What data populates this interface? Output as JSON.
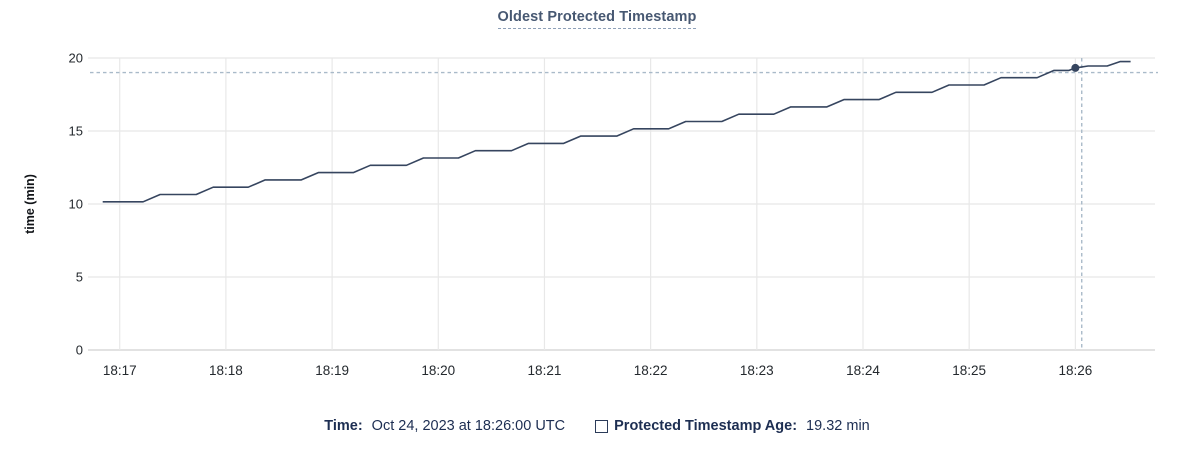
{
  "chart_data": {
    "type": "line",
    "title": "Oldest Protected Timestamp",
    "xlabel": "",
    "ylabel": "time (min)",
    "x_ticks": [
      "18:17",
      "18:18",
      "18:19",
      "18:20",
      "18:21",
      "18:22",
      "18:23",
      "18:24",
      "18:25",
      "18:26"
    ],
    "y_ticks": [
      "0",
      "5",
      "10",
      "15",
      "20"
    ],
    "y_tick_values": [
      0,
      5,
      10,
      15,
      20
    ],
    "ylim": [
      0,
      20
    ],
    "xlim_minutes": [
      -0.28,
      9.75
    ],
    "grid": true,
    "legend_position": "bottom",
    "series": [
      {
        "name": "Protected Timestamp Age",
        "points": [
          [
            -0.16,
            10.15
          ],
          [
            0.22,
            10.15
          ],
          [
            0.38,
            10.65
          ],
          [
            0.72,
            10.65
          ],
          [
            0.88,
            11.15
          ],
          [
            1.21,
            11.15
          ],
          [
            1.37,
            11.65
          ],
          [
            1.71,
            11.65
          ],
          [
            1.87,
            12.15
          ],
          [
            2.2,
            12.15
          ],
          [
            2.36,
            12.65
          ],
          [
            2.7,
            12.65
          ],
          [
            2.86,
            13.15
          ],
          [
            3.19,
            13.15
          ],
          [
            3.35,
            13.65
          ],
          [
            3.69,
            13.65
          ],
          [
            3.85,
            14.15
          ],
          [
            4.18,
            14.15
          ],
          [
            4.34,
            14.65
          ],
          [
            4.68,
            14.65
          ],
          [
            4.84,
            15.15
          ],
          [
            5.17,
            15.15
          ],
          [
            5.33,
            15.65
          ],
          [
            5.67,
            15.65
          ],
          [
            5.83,
            16.15
          ],
          [
            6.16,
            16.15
          ],
          [
            6.32,
            16.65
          ],
          [
            6.66,
            16.65
          ],
          [
            6.82,
            17.15
          ],
          [
            7.15,
            17.15
          ],
          [
            7.31,
            17.65
          ],
          [
            7.65,
            17.65
          ],
          [
            7.81,
            18.15
          ],
          [
            8.14,
            18.15
          ],
          [
            8.3,
            18.65
          ],
          [
            8.64,
            18.65
          ],
          [
            8.8,
            19.15
          ],
          [
            8.94,
            19.15
          ],
          [
            9.0,
            19.32
          ],
          [
            9.12,
            19.45
          ],
          [
            9.3,
            19.45
          ],
          [
            9.42,
            19.75
          ],
          [
            9.52,
            19.75
          ]
        ]
      }
    ],
    "crosshair": {
      "t_minutes": 9.06,
      "hline_value": 19.0,
      "point": [
        9.0,
        19.32
      ]
    },
    "colors": {
      "series_line": "#36455f",
      "data_point": "#36455f",
      "grid_line": "#e8e8e8",
      "axis_line": "#d9d9d9",
      "tick_text": "#24292e",
      "crosshair": "#a9bac9",
      "title": "#475872",
      "legend_text": "#1d2e52"
    }
  },
  "tooltip": {
    "time_label": "Time:",
    "time_value": "Oct 24, 2023 at 18:26:00 UTC",
    "age_label": "Protected Timestamp Age:",
    "age_value": "19.32 min"
  }
}
